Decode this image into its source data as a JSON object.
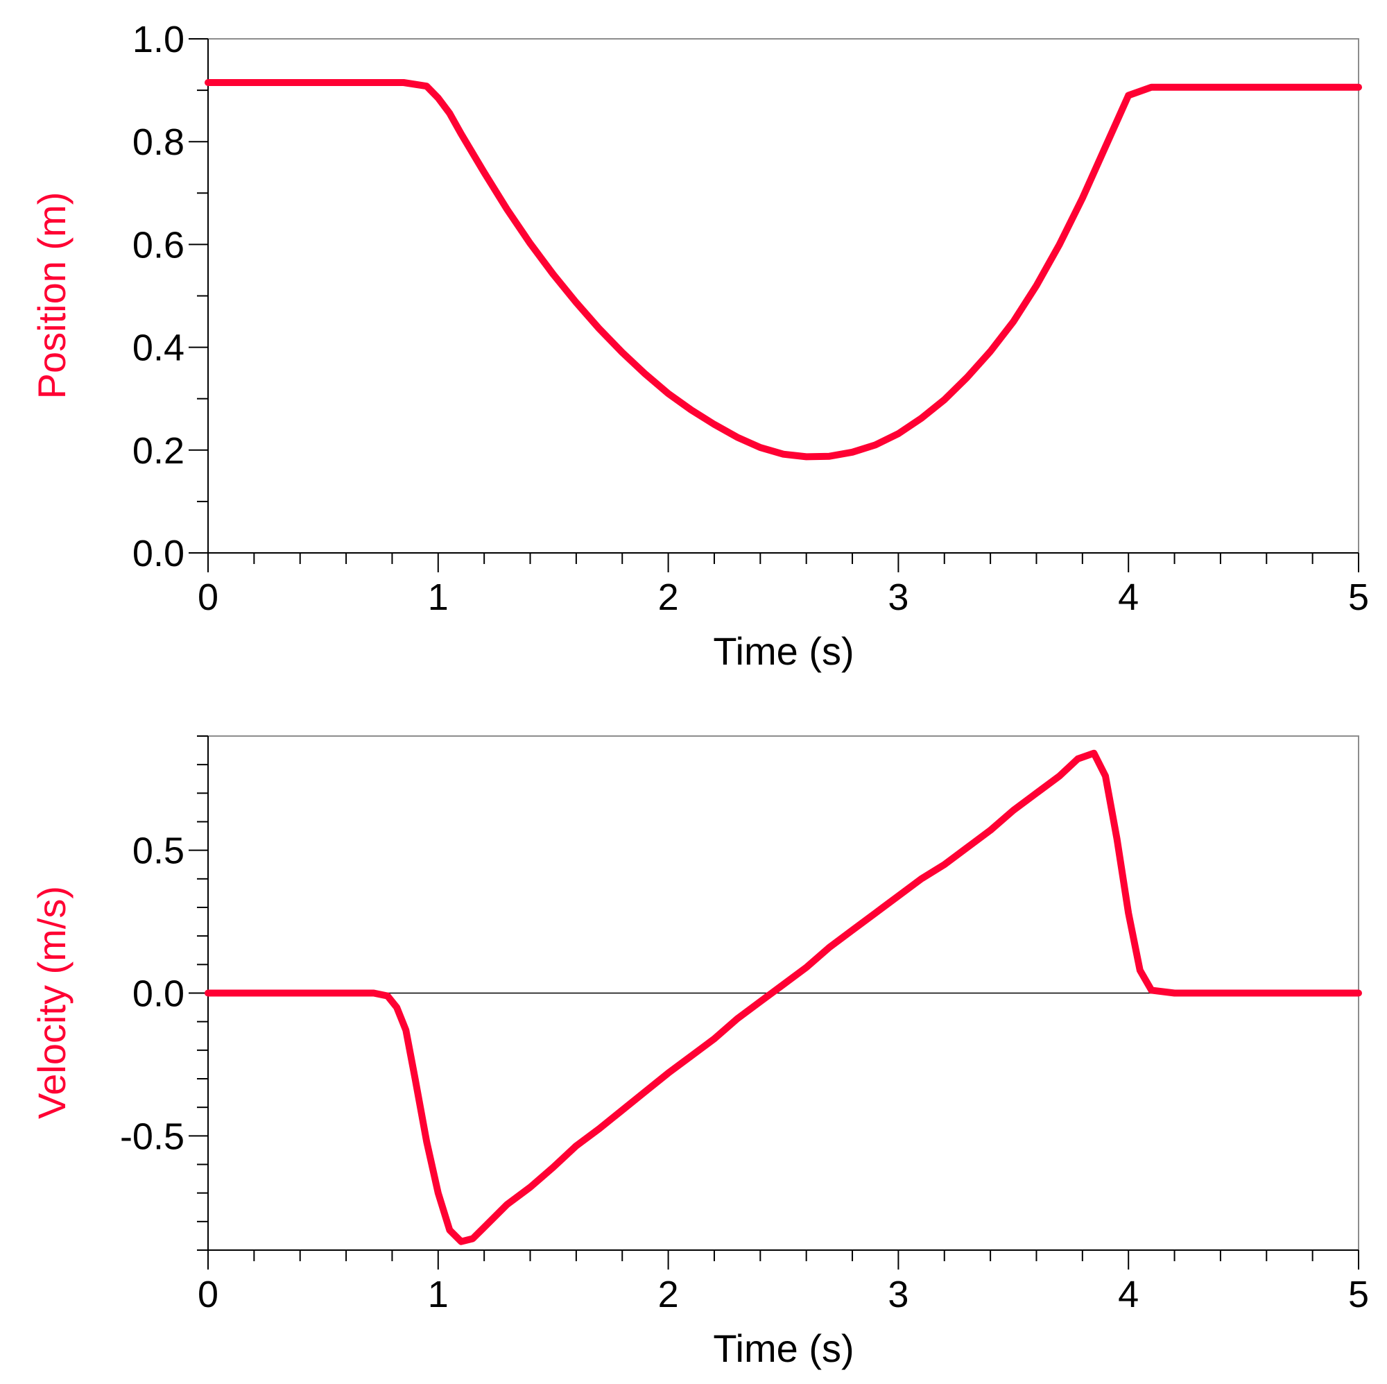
{
  "colors": {
    "series": "#ff0033",
    "axis": "#000000",
    "frame": "#8c8c8c"
  },
  "chart_data": [
    {
      "type": "line",
      "title": "",
      "xlabel": "Time (s)",
      "ylabel": "Position (m)",
      "xlim": [
        0,
        5
      ],
      "ylim": [
        0,
        1.0
      ],
      "x_ticks": [
        0,
        1,
        2,
        3,
        4,
        5
      ],
      "x_tick_labels": [
        "0",
        "1",
        "2",
        "3",
        "4",
        "5"
      ],
      "x_minor_step": 0.2,
      "y_ticks": [
        0.0,
        0.2,
        0.4,
        0.6,
        0.8,
        1.0
      ],
      "y_tick_labels": [
        "0.0",
        "0.2",
        "0.4",
        "0.6",
        "0.8",
        "1.0"
      ],
      "y_minor_step": 0.1,
      "zero_line": false,
      "grid": false,
      "series": [
        {
          "color": "#ff0033",
          "x": [
            0,
            0.5,
            0.85,
            0.95,
            1.0,
            1.05,
            1.1,
            1.2,
            1.3,
            1.4,
            1.5,
            1.6,
            1.7,
            1.8,
            1.9,
            2.0,
            2.1,
            2.2,
            2.3,
            2.4,
            2.5,
            2.6,
            2.7,
            2.8,
            2.9,
            3.0,
            3.1,
            3.2,
            3.3,
            3.4,
            3.5,
            3.6,
            3.7,
            3.8,
            3.9,
            3.95,
            4.0,
            4.1,
            4.2,
            4.5,
            5.0
          ],
          "y": [
            0.915,
            0.915,
            0.915,
            0.908,
            0.885,
            0.855,
            0.815,
            0.74,
            0.668,
            0.602,
            0.542,
            0.487,
            0.436,
            0.39,
            0.348,
            0.31,
            0.278,
            0.25,
            0.225,
            0.205,
            0.192,
            0.187,
            0.188,
            0.196,
            0.21,
            0.232,
            0.262,
            0.298,
            0.342,
            0.392,
            0.45,
            0.52,
            0.6,
            0.69,
            0.79,
            0.84,
            0.89,
            0.906,
            0.906,
            0.906,
            0.906
          ]
        }
      ]
    },
    {
      "type": "line",
      "title": "",
      "xlabel": "Time (s)",
      "ylabel": "Velocity (m/s)",
      "xlim": [
        0,
        5
      ],
      "ylim": [
        -0.9,
        0.9
      ],
      "x_ticks": [
        0,
        1,
        2,
        3,
        4,
        5
      ],
      "x_tick_labels": [
        "0",
        "1",
        "2",
        "3",
        "4",
        "5"
      ],
      "x_minor_step": 0.2,
      "y_ticks": [
        -0.5,
        0.0,
        0.5
      ],
      "y_tick_labels": [
        "-0.5",
        "0.0",
        "0.5"
      ],
      "y_minor_step": 0.1,
      "zero_line": true,
      "grid": false,
      "series": [
        {
          "color": "#ff0033",
          "x": [
            0,
            0.5,
            0.72,
            0.78,
            0.82,
            0.86,
            0.9,
            0.95,
            1.0,
            1.05,
            1.1,
            1.15,
            1.2,
            1.3,
            1.4,
            1.5,
            1.6,
            1.7,
            1.8,
            1.9,
            2.0,
            2.1,
            2.2,
            2.3,
            2.4,
            2.5,
            2.6,
            2.7,
            2.8,
            2.9,
            3.0,
            3.1,
            3.2,
            3.3,
            3.4,
            3.5,
            3.6,
            3.7,
            3.78,
            3.85,
            3.9,
            3.95,
            4.0,
            4.05,
            4.1,
            4.2,
            4.3,
            4.5,
            5.0
          ],
          "y": [
            0.0,
            0.0,
            0.0,
            -0.01,
            -0.05,
            -0.13,
            -0.3,
            -0.52,
            -0.7,
            -0.83,
            -0.87,
            -0.86,
            -0.82,
            -0.74,
            -0.68,
            -0.61,
            -0.535,
            -0.475,
            -0.41,
            -0.345,
            -0.28,
            -0.22,
            -0.16,
            -0.09,
            -0.03,
            0.03,
            0.09,
            0.16,
            0.22,
            0.28,
            0.34,
            0.4,
            0.45,
            0.51,
            0.57,
            0.64,
            0.7,
            0.76,
            0.82,
            0.84,
            0.76,
            0.54,
            0.28,
            0.08,
            0.01,
            0.0,
            0.0,
            0.0,
            0.0
          ]
        }
      ]
    }
  ]
}
